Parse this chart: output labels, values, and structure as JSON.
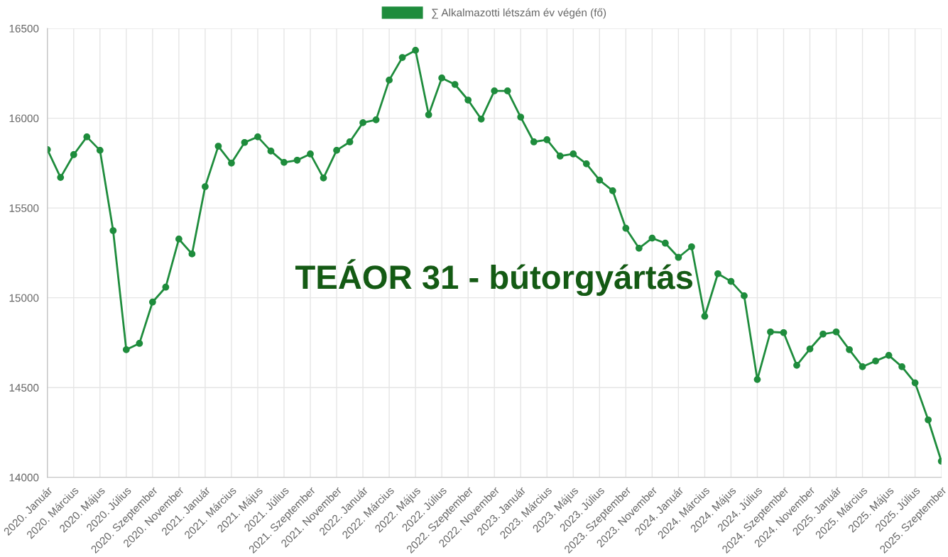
{
  "chart_data": {
    "type": "line",
    "annotations": [
      "TEÁOR 31 - bútorgyártás"
    ],
    "categories": [
      "2020. Január",
      null,
      "2020. Március",
      null,
      "2020. Május",
      null,
      "2020. Július",
      null,
      "2020. Szeptember",
      null,
      "2020. November",
      null,
      "2021. Január",
      null,
      "2021. Március",
      null,
      "2021. Május",
      null,
      "2021. Július",
      null,
      "2021. Szeptember",
      null,
      "2021. November",
      null,
      "2022. Január",
      null,
      "2022. Március",
      null,
      "2022. Május",
      null,
      "2022. Július",
      null,
      "2022. Szeptember",
      null,
      "2022. November",
      null,
      "2023. Január",
      null,
      "2023. Március",
      null,
      "2023. Május",
      null,
      "2023. Július",
      null,
      "2023. Szeptember",
      null,
      "2023. November",
      null,
      "2024. Január",
      null,
      "2024. Március",
      null,
      "2024. Május",
      null,
      "2024. Július",
      null,
      "2024. Szeptember",
      null,
      "2024. November",
      null,
      "2025. Január",
      null,
      "2025. Március",
      null,
      "2025. Május",
      null,
      "2025. Július",
      null,
      "2025. Szeptember"
    ],
    "series": [
      {
        "name": "∑ Alkalmazotti létszám év végén (fő)",
        "color": "#1e8c3c",
        "values": [
          15825,
          15670,
          15797,
          15896,
          15821,
          15374,
          14711,
          14746,
          14976,
          15059,
          15327,
          15244,
          15619,
          15844,
          15750,
          15865,
          15896,
          15817,
          15754,
          15766,
          15801,
          15667,
          15821,
          15868,
          15975,
          15991,
          16212,
          16338,
          16378,
          16019,
          16224,
          16188,
          16101,
          15995,
          16152,
          16152,
          16006,
          15868,
          15880,
          15789,
          15801,
          15746,
          15655,
          15596,
          15387,
          15276,
          15332,
          15304,
          15225,
          15284,
          14897,
          15134,
          15091,
          15011,
          14545,
          14810,
          14806,
          14624,
          14715,
          14798,
          14810,
          14711,
          14616,
          14648,
          14679,
          14616,
          14526,
          14320,
          14090
        ]
      }
    ],
    "ylim": [
      14000,
      16500
    ],
    "yticks": [
      14000,
      14500,
      15000,
      15500,
      16000,
      16500
    ],
    "grid": true,
    "legend": "top",
    "marker": "circle",
    "line_style": "solid"
  }
}
